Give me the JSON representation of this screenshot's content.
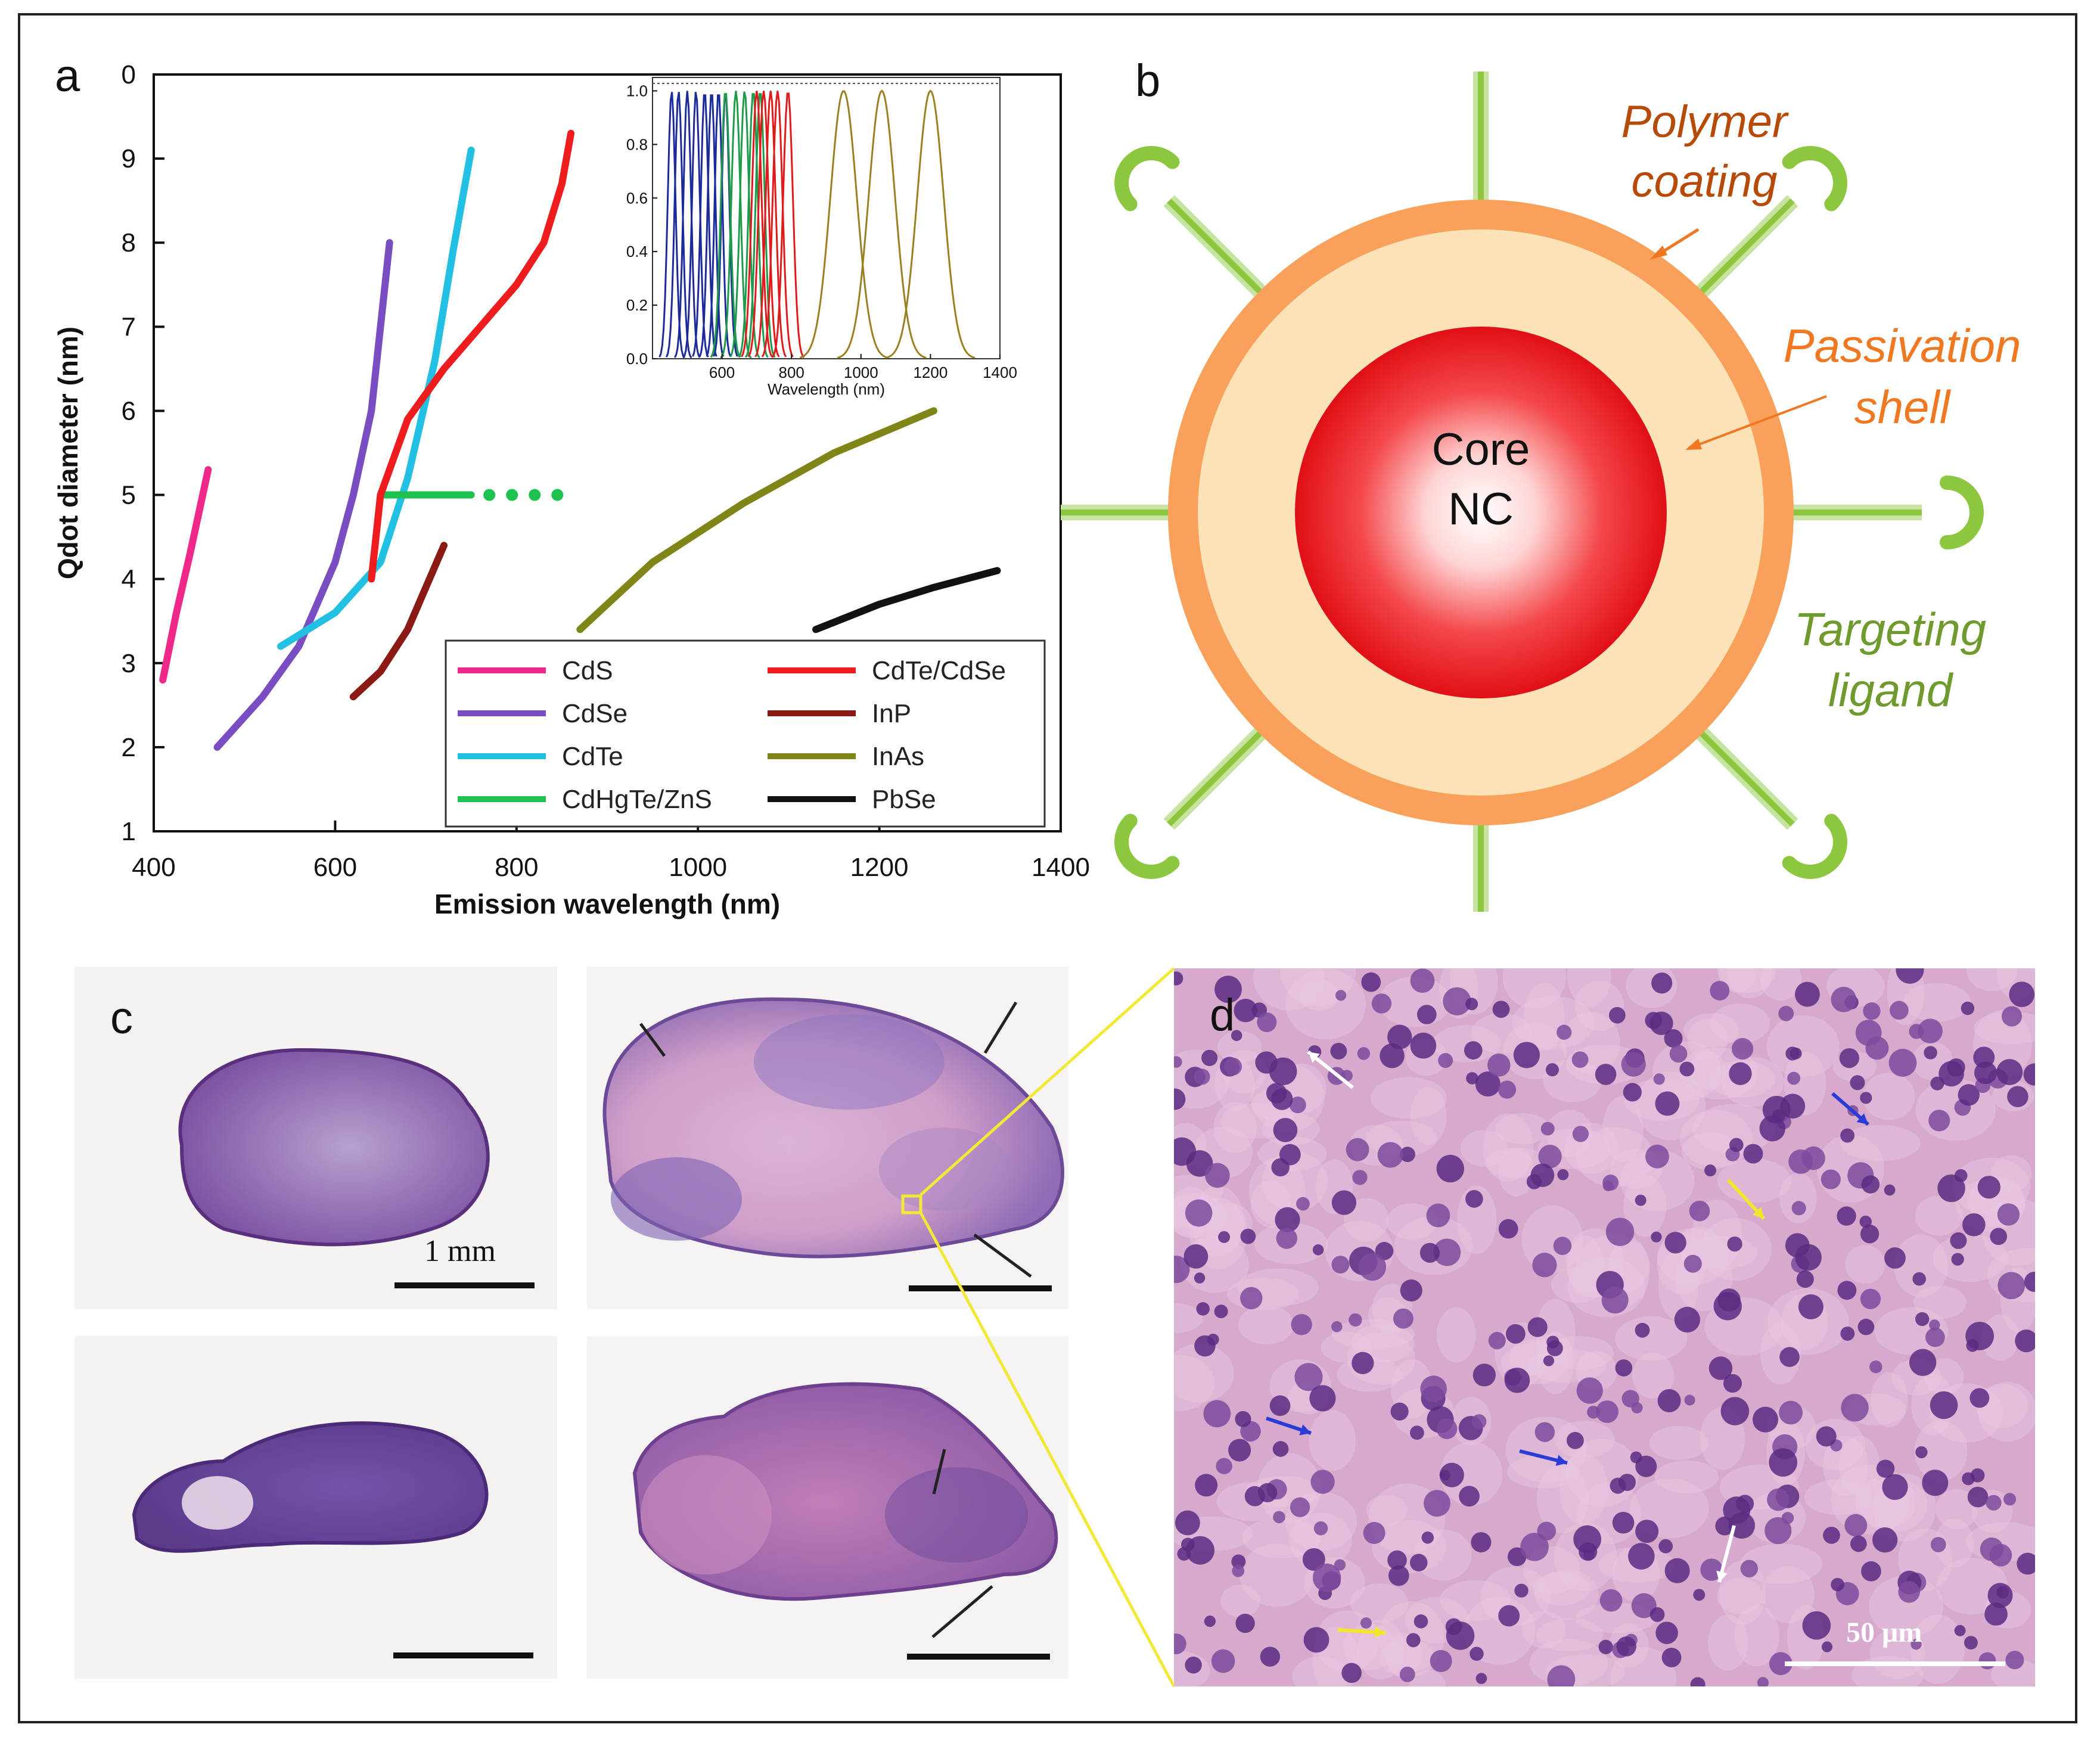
{
  "panels": {
    "a": "a",
    "b": "b",
    "c": "c",
    "d": "d"
  },
  "colors": {
    "CdS": "#f0288a",
    "CdSe": "#7a4ec2",
    "CdTe": "#22c0e2",
    "CdHgTe_ZnS": "#1ec24e",
    "CdTe_CdSe": "#ee1c1c",
    "InP": "#8b1a14",
    "InAs": "#7f8617",
    "PbSe": "#111111",
    "polymer": "#f9a15a",
    "shell": "#fde2b8",
    "ligand": "#8dc63f",
    "core": "#e8121a",
    "polymer_label": "#b84a08",
    "shell_label": "#f07820",
    "ligand_label": "#6f9a2e"
  },
  "chart_data": [
    {
      "type": "line",
      "title": "",
      "xlabel": "Emission wavelength (nm)",
      "ylabel": "Qdot diameter (nm)",
      "xlim": [
        400,
        1400
      ],
      "ylim": [
        1,
        10
      ],
      "xticks": [
        "400",
        "600",
        "800",
        "1000",
        "1200",
        "1400"
      ],
      "yticks": [
        "1",
        "2",
        "3",
        "4",
        "5",
        "6",
        "7",
        "8",
        "9",
        "0"
      ],
      "series": [
        {
          "name": "CdS",
          "key": "CdS",
          "x": [
            410,
            425,
            440,
            450,
            460
          ],
          "y": [
            2.8,
            3.6,
            4.3,
            4.8,
            5.3
          ]
        },
        {
          "name": "CdSe",
          "key": "CdSe",
          "x": [
            470,
            520,
            560,
            600,
            620,
            640,
            650,
            660
          ],
          "y": [
            2.0,
            2.6,
            3.2,
            4.2,
            5.0,
            6.0,
            7.0,
            8.0
          ]
        },
        {
          "name": "CdTe",
          "key": "CdTe",
          "x": [
            540,
            600,
            650,
            680,
            710,
            730,
            750
          ],
          "y": [
            3.2,
            3.6,
            4.2,
            5.2,
            6.6,
            7.9,
            9.1
          ]
        },
        {
          "name": "CdHgTe/ZnS",
          "key": "CdHgTe_ZnS",
          "x": [
            650,
            750
          ],
          "y": [
            5.0,
            5.0
          ],
          "dotted_x": [
            770,
            795,
            820,
            845
          ],
          "dotted_y": [
            5.0,
            5.0,
            5.0,
            5.0
          ]
        },
        {
          "name": "CdTe/CdSe",
          "key": "CdTe_CdSe",
          "x": [
            640,
            650,
            680,
            720,
            760,
            800,
            830,
            850,
            860
          ],
          "y": [
            4.0,
            5.0,
            5.9,
            6.5,
            7.0,
            7.5,
            8.0,
            8.7,
            9.3
          ]
        },
        {
          "name": "InP",
          "key": "InP",
          "x": [
            620,
            650,
            680,
            700,
            720
          ],
          "y": [
            2.6,
            2.9,
            3.4,
            3.9,
            4.4
          ]
        },
        {
          "name": "InAs",
          "key": "InAs",
          "x": [
            870,
            950,
            1050,
            1150,
            1260
          ],
          "y": [
            3.4,
            4.2,
            4.9,
            5.5,
            6.0
          ]
        },
        {
          "name": "PbSe",
          "key": "PbSe",
          "x": [
            1130,
            1200,
            1260,
            1330
          ],
          "y": [
            3.4,
            3.7,
            3.9,
            4.1
          ]
        }
      ]
    },
    {
      "type": "line",
      "title": "",
      "xlabel": "Wavelength (nm)",
      "ylabel": "",
      "xlim": [
        400,
        1400
      ],
      "ylim": [
        0,
        1.05
      ],
      "xticks": [
        "600",
        "800",
        "1000",
        "1200",
        "1400"
      ],
      "yticks": [
        "0.0",
        "0.2",
        "0.4",
        "0.6",
        "0.8",
        "1.0"
      ],
      "peak_groups": [
        {
          "key": "CdSe",
          "color": "#1c2a9a",
          "peaks": [
            455,
            475,
            500,
            525,
            550,
            570,
            590,
            610
          ],
          "width": 11
        },
        {
          "key": "CdTe",
          "color": "#1e9b4a",
          "peaks": [
            610,
            640,
            665,
            690,
            710
          ],
          "width": 13
        },
        {
          "key": "CdTe_CdSe",
          "color": "#e01a1a",
          "peaks": [
            700,
            720,
            740,
            760,
            790
          ],
          "width": 14
        },
        {
          "key": "InAs",
          "color": "#9a8020",
          "peaks": [
            950,
            1060,
            1200
          ],
          "width": 38
        }
      ]
    }
  ],
  "diagram": {
    "core_label": "Core",
    "core_label2": "NC",
    "polymer_label1": "Polymer",
    "polymer_label2": "coating",
    "shell_label1": "Passivation",
    "shell_label2": "shell",
    "ligand_label1": "Targeting",
    "ligand_label2": "ligand"
  },
  "histology": {
    "scale_c": "1 mm",
    "scale_d": "50 μm"
  }
}
